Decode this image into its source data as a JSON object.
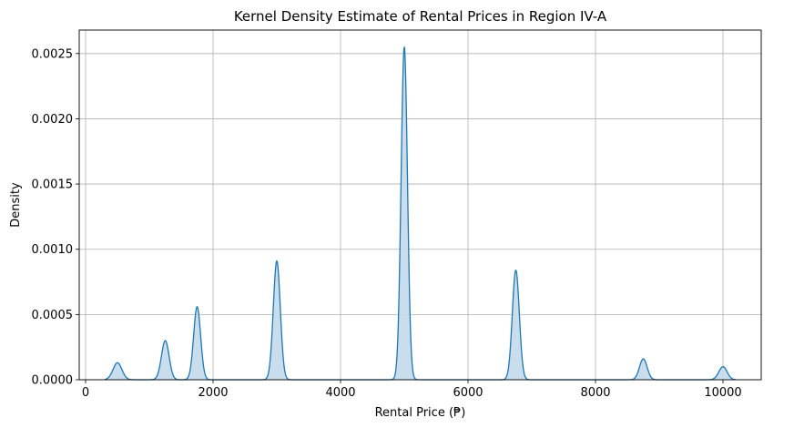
{
  "chart_data": {
    "type": "area",
    "title": "Kernel Density Estimate of Rental Prices in Region IV-A",
    "xlabel": "Rental Price (₱)",
    "ylabel": "Density",
    "xlim": [
      -100,
      10600
    ],
    "ylim": [
      0,
      0.00268
    ],
    "x_ticks": [
      0,
      2000,
      4000,
      6000,
      8000,
      10000
    ],
    "x_tick_labels": [
      "0",
      "2000",
      "4000",
      "6000",
      "8000",
      "10000"
    ],
    "y_ticks": [
      0,
      0.0005,
      0.001,
      0.0015,
      0.002,
      0.0025
    ],
    "y_tick_labels": [
      "0.0000",
      "0.0005",
      "0.0010",
      "0.0015",
      "0.0020",
      "0.0025"
    ],
    "grid": true,
    "legend": "none",
    "colors": {
      "line": "#1f77b4",
      "fill": "#c6dbec",
      "grid": "#b0b0b0"
    },
    "x_range": [
      300,
      10200
    ],
    "peaks": [
      {
        "center": 500,
        "height": 0.00013,
        "width": 70
      },
      {
        "center": 1250,
        "height": 0.0003,
        "width": 60
      },
      {
        "center": 1750,
        "height": 0.00056,
        "width": 55
      },
      {
        "center": 3000,
        "height": 0.00091,
        "width": 55
      },
      {
        "center": 5000,
        "height": 0.00255,
        "width": 50
      },
      {
        "center": 6750,
        "height": 0.00084,
        "width": 55
      },
      {
        "center": 8750,
        "height": 0.00016,
        "width": 60
      },
      {
        "center": 10000,
        "height": 0.0001,
        "width": 65
      }
    ]
  }
}
